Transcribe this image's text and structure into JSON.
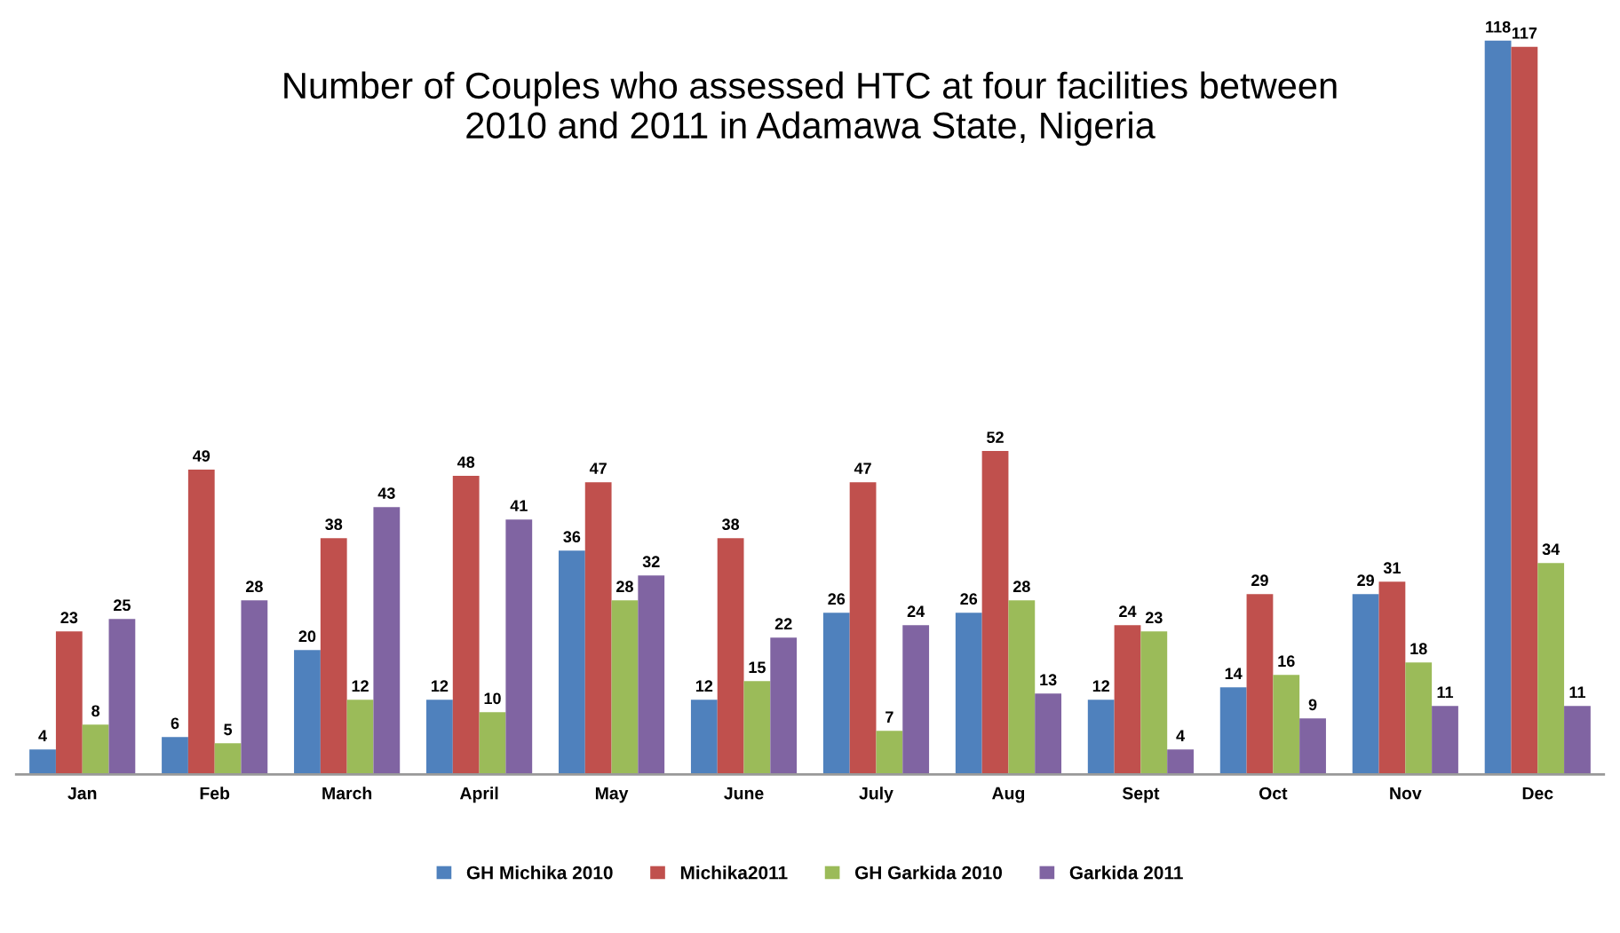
{
  "chart_data": {
    "type": "bar",
    "title": "Number of Couples who assessed HTC at four facilities between\n2010 and 2011 in Adamawa State, Nigeria",
    "categories": [
      "Jan",
      "Feb",
      "March",
      "April",
      "May",
      "June",
      "July",
      "Aug",
      "Sept",
      "Oct",
      "Nov",
      "Dec"
    ],
    "series": [
      {
        "name": "GH Michika 2010",
        "color": "#4f81bd",
        "values": [
          4,
          6,
          20,
          12,
          36,
          12,
          26,
          26,
          12,
          14,
          29,
          118
        ]
      },
      {
        "name": "Michika2011",
        "color": "#c0504d",
        "values": [
          23,
          49,
          38,
          48,
          47,
          38,
          47,
          52,
          24,
          29,
          31,
          117
        ]
      },
      {
        "name": "GH Garkida 2010",
        "color": "#9bbb59",
        "values": [
          8,
          5,
          12,
          10,
          28,
          15,
          7,
          28,
          23,
          16,
          18,
          34
        ]
      },
      {
        "name": "Garkida 2011",
        "color": "#8064a2",
        "values": [
          25,
          28,
          43,
          41,
          32,
          22,
          24,
          13,
          4,
          9,
          11,
          11
        ]
      }
    ],
    "data_labels": true,
    "legend": "bottom",
    "grid": false,
    "tick_labels": "x"
  }
}
